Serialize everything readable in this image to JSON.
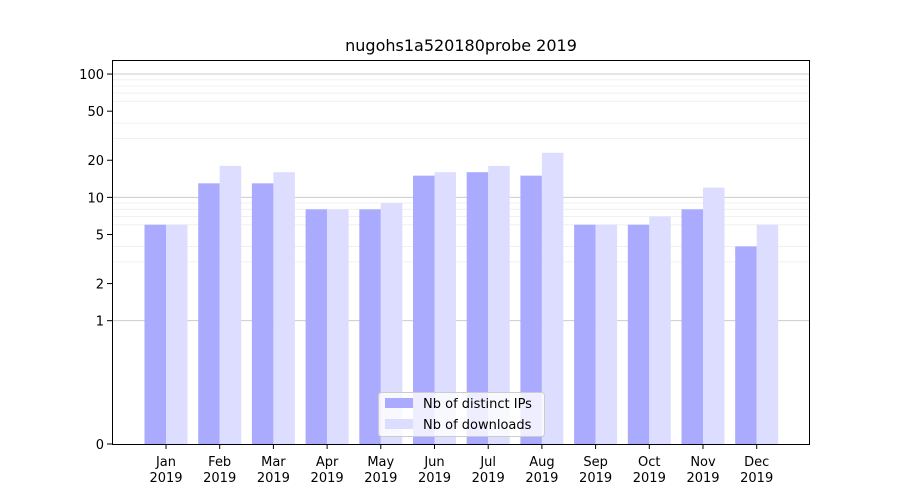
{
  "chart_data": {
    "type": "bar",
    "title": "nugohs1a520180probe 2019",
    "xlabel": "",
    "ylabel": "",
    "y_scale": "symlog",
    "ylim": [
      0,
      130
    ],
    "yticks": [
      0,
      1,
      2,
      5,
      10,
      20,
      50,
      100
    ],
    "grid": true,
    "legend_position": "bottom-center",
    "categories": [
      [
        "Jan",
        "2019"
      ],
      [
        "Feb",
        "2019"
      ],
      [
        "Mar",
        "2019"
      ],
      [
        "Apr",
        "2019"
      ],
      [
        "May",
        "2019"
      ],
      [
        "Jun",
        "2019"
      ],
      [
        "Jul",
        "2019"
      ],
      [
        "Aug",
        "2019"
      ],
      [
        "Sep",
        "2019"
      ],
      [
        "Oct",
        "2019"
      ],
      [
        "Nov",
        "2019"
      ],
      [
        "Dec",
        "2019"
      ]
    ],
    "series": [
      {
        "name": "Nb of distinct IPs",
        "color": "#aaaaff",
        "values": [
          6,
          13,
          13,
          8,
          8,
          15,
          16,
          15,
          6,
          6,
          8,
          4
        ]
      },
      {
        "name": "Nb of downloads",
        "color": "#ddddff",
        "values": [
          6,
          18,
          16,
          8,
          9,
          16,
          18,
          23,
          6,
          7,
          12,
          6
        ]
      }
    ]
  }
}
